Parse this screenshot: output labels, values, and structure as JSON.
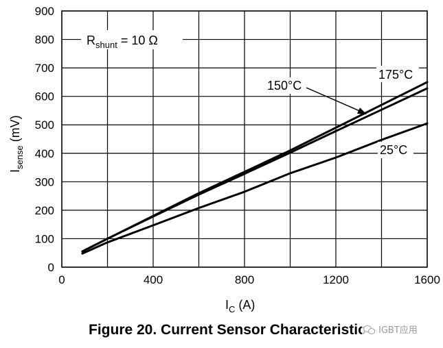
{
  "chart_data": {
    "type": "line",
    "title": "",
    "xlabel": {
      "main": "I",
      "sub": "C",
      "unit": " (A)"
    },
    "ylabel": {
      "main": "I",
      "sub": "sense",
      "unit": " (mV)"
    },
    "xlim": [
      0,
      1600
    ],
    "ylim": [
      0,
      900
    ],
    "xticks": [
      0,
      400,
      800,
      1200,
      1600
    ],
    "yticks": [
      0,
      100,
      200,
      300,
      400,
      500,
      600,
      700,
      800,
      900
    ],
    "grid": true,
    "annotation": {
      "main": "R",
      "sub": "shunt",
      "rest": " = 10 Ω"
    },
    "series": [
      {
        "name": "175°C",
        "x": [
          90,
          200,
          400,
          600,
          800,
          1000,
          1200,
          1400,
          1600
        ],
        "y": [
          55,
          100,
          180,
          260,
          335,
          410,
          490,
          570,
          650
        ]
      },
      {
        "name": "150°C",
        "x": [
          90,
          200,
          400,
          600,
          800,
          1000,
          1200,
          1400,
          1600
        ],
        "y": [
          55,
          100,
          178,
          255,
          328,
          402,
          478,
          553,
          628
        ]
      },
      {
        "name": "25°C",
        "x": [
          90,
          200,
          400,
          600,
          800,
          1000,
          1200,
          1400,
          1600
        ],
        "y": [
          48,
          87,
          147,
          208,
          265,
          330,
          385,
          447,
          505
        ]
      }
    ]
  },
  "caption": "Figure 20. Current Sensor Characteristic",
  "watermark": "IGBT应用",
  "colors": {
    "line": "#000000",
    "grid": "#000000",
    "background": "#ffffff"
  }
}
